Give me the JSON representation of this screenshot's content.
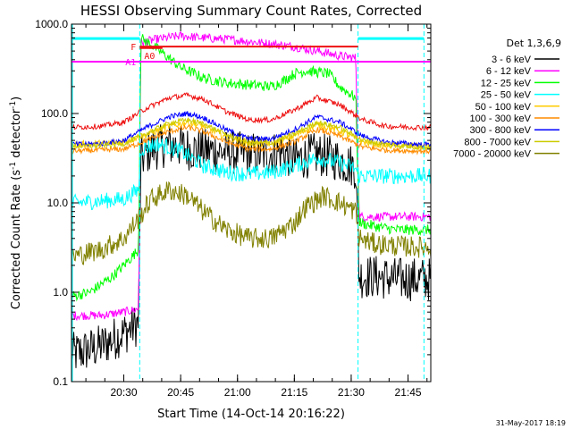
{
  "chart_data": {
    "type": "line",
    "title": "HESSI Observing Summary Count Rates, Corrected",
    "xlabel": "Start Time (14-Oct-14 20:16:22)",
    "ylabel_main": "Corrected Count Rate (s",
    "ylabel_sup1": "-1",
    "ylabel_mid": " detector",
    "ylabel_sup2": "-1",
    "ylabel_end": ")",
    "xlim": [
      20.27,
      21.85
    ],
    "ylim": [
      0.1,
      1000.0
    ],
    "yscale": "log",
    "grid": false,
    "xticks": [
      {
        "v": 20.5,
        "label": "20:30"
      },
      {
        "v": 20.75,
        "label": "20:45"
      },
      {
        "v": 21.0,
        "label": "21:00"
      },
      {
        "v": 21.25,
        "label": "21:15"
      },
      {
        "v": 21.5,
        "label": "21:30"
      },
      {
        "v": 21.75,
        "label": "21:45"
      }
    ],
    "yticks": [
      {
        "v": 0.1,
        "label": "0.1"
      },
      {
        "v": 1.0,
        "label": "1.0"
      },
      {
        "v": 10.0,
        "label": "10.0"
      },
      {
        "v": 100.0,
        "label": "100.0"
      },
      {
        "v": 1000.0,
        "label": "1000.0"
      }
    ],
    "legend": {
      "position": "right",
      "title": "Det 1,3,6,9",
      "entries": [
        {
          "label": "3 - 6 keV",
          "color": "#000000"
        },
        {
          "label": "6 - 12 keV",
          "color": "#ff00ff"
        },
        {
          "label": "12 - 25 keV",
          "color": "#00ff00"
        },
        {
          "label": "25 - 50 keV",
          "color": "#00ffff"
        },
        {
          "label": "50 - 100 keV",
          "color": "#ffcc00"
        },
        {
          "label": "100 - 300 keV",
          "color": "#ff8c00"
        },
        {
          "label": "300 - 800 keV",
          "color": "#0000ff"
        },
        {
          "label": "800 - 7000 keV",
          "color": "#cccc00"
        },
        {
          "label": "7000 - 20000 keV",
          "color": "#808000"
        }
      ]
    },
    "vlines": [
      20.57,
      21.53,
      21.82
    ],
    "attenuator_bars": [
      {
        "label": "F",
        "color": "#ee1111",
        "x": [
          20.57,
          21.53
        ],
        "y": 560
      },
      {
        "label": "A0",
        "color": "#ee1111",
        "x": [
          20.57,
          20.67
        ],
        "y": 540
      },
      {
        "label": "A1",
        "color": "#ff00ff",
        "x": [
          20.27,
          21.85
        ],
        "y": 380
      }
    ],
    "orbit_segments": [
      {
        "color": "#00ffff",
        "x": [
          20.27,
          20.57
        ],
        "y": 690
      },
      {
        "color": "#00ffff",
        "x": [
          21.53,
          21.82
        ],
        "y": 690
      }
    ],
    "series": [
      {
        "name": "3 - 6 keV",
        "color": "#000000",
        "noise": 0.25,
        "x": [
          20.27,
          20.4,
          20.5,
          20.565,
          20.575,
          20.62,
          20.7,
          20.8,
          20.9,
          21.0,
          21.1,
          21.15,
          21.2,
          21.25,
          21.3,
          21.35,
          21.4,
          21.45,
          21.52,
          21.535,
          21.6,
          21.7,
          21.8
        ],
        "y": [
          0.2,
          0.25,
          0.35,
          0.45,
          30,
          40,
          45,
          40,
          38,
          36,
          35,
          36,
          38,
          30,
          33,
          35,
          33,
          30,
          25,
          1.5,
          1.5,
          1.4,
          1.4
        ]
      },
      {
        "name": "6 - 12 keV",
        "color": "#ff00ff",
        "noise": 0.05,
        "x": [
          20.27,
          20.4,
          20.5,
          20.565,
          20.575,
          20.65,
          20.75,
          20.85,
          20.95,
          21.05,
          21.15,
          21.25,
          21.35,
          21.45,
          21.52,
          21.535,
          21.6,
          21.7,
          21.8
        ],
        "y": [
          0.55,
          0.55,
          0.6,
          0.65,
          620,
          680,
          740,
          700,
          680,
          640,
          600,
          560,
          500,
          440,
          420,
          7,
          7,
          7,
          7
        ]
      },
      {
        "name": "12 - 25 keV",
        "color": "#00ff00",
        "noise": 0.06,
        "x": [
          20.27,
          20.35,
          20.45,
          20.5,
          20.565,
          20.575,
          20.65,
          20.75,
          20.85,
          20.95,
          21.05,
          21.15,
          21.2,
          21.25,
          21.3,
          21.4,
          21.45,
          21.52,
          21.535,
          21.6,
          21.7,
          21.8
        ],
        "y": [
          0.9,
          1.0,
          1.5,
          2.0,
          3.0,
          700,
          520,
          330,
          250,
          220,
          210,
          200,
          230,
          280,
          300,
          280,
          200,
          150,
          6,
          5.5,
          5,
          5
        ]
      },
      {
        "name": "25 - 50 keV",
        "color": "#00ffff",
        "noise": 0.09,
        "x": [
          20.27,
          20.4,
          20.5,
          20.565,
          20.575,
          20.65,
          20.75,
          20.85,
          20.95,
          21.05,
          21.15,
          21.25,
          21.35,
          21.45,
          21.52,
          21.535,
          21.6,
          21.7,
          21.8
        ],
        "y": [
          10,
          10.5,
          11,
          14,
          40,
          46,
          38,
          26,
          22,
          21,
          22,
          26,
          32,
          28,
          24,
          20,
          20,
          20,
          20
        ]
      },
      {
        "name": "50 - 100 keV",
        "color": "#ffcc00",
        "noise": 0.04,
        "x": [
          20.27,
          20.4,
          20.5,
          20.6,
          20.7,
          20.78,
          20.85,
          20.95,
          21.05,
          21.15,
          21.25,
          21.35,
          21.45,
          21.55,
          21.65,
          21.8
        ],
        "y": [
          45,
          46,
          48,
          58,
          72,
          80,
          72,
          55,
          46,
          46,
          56,
          76,
          64,
          48,
          44,
          43
        ]
      },
      {
        "name": "100 - 300 keV",
        "color": "#ff8c00",
        "noise": 0.03,
        "x": [
          20.27,
          20.4,
          20.5,
          20.6,
          20.7,
          20.78,
          20.85,
          20.95,
          21.05,
          21.15,
          21.25,
          21.35,
          21.45,
          21.55,
          21.65,
          21.8
        ],
        "y": [
          38,
          39,
          40,
          50,
          63,
          70,
          63,
          48,
          40,
          40,
          48,
          66,
          56,
          42,
          39,
          38
        ]
      },
      {
        "name": "300 - 800 keV",
        "color": "#0000ff",
        "noise": 0.03,
        "x": [
          20.27,
          20.4,
          20.5,
          20.6,
          20.7,
          20.78,
          20.85,
          20.95,
          21.05,
          21.15,
          21.25,
          21.35,
          21.45,
          21.55,
          21.65,
          21.8
        ],
        "y": [
          45,
          46,
          50,
          70,
          92,
          100,
          90,
          66,
          52,
          52,
          66,
          92,
          80,
          56,
          48,
          45
        ]
      },
      {
        "name": "800 - 7000 keV",
        "color": "#cccc00",
        "noise": 0.03,
        "x": [
          20.27,
          20.4,
          20.5,
          20.6,
          20.7,
          20.78,
          20.85,
          20.95,
          21.05,
          21.15,
          21.25,
          21.35,
          21.45,
          21.55,
          21.65,
          21.8
        ],
        "y": [
          43,
          44,
          46,
          60,
          78,
          85,
          77,
          58,
          47,
          47,
          59,
          80,
          70,
          50,
          45,
          42
        ]
      },
      {
        "name": "",
        "color": "#ee1111",
        "noise": 0.03,
        "x": [
          20.27,
          20.4,
          20.5,
          20.6,
          20.7,
          20.78,
          20.85,
          20.95,
          21.05,
          21.15,
          21.25,
          21.35,
          21.45,
          21.55,
          21.65,
          21.8
        ],
        "y": [
          70,
          72,
          80,
          115,
          150,
          160,
          145,
          105,
          85,
          85,
          110,
          150,
          125,
          85,
          72,
          70
        ]
      },
      {
        "name": "7000 - 20000 keV",
        "color": "#808000",
        "noise": 0.12,
        "x": [
          20.27,
          20.4,
          20.5,
          20.57,
          20.62,
          20.7,
          20.78,
          20.85,
          20.95,
          21.05,
          21.15,
          21.25,
          21.3,
          21.38,
          21.45,
          21.52,
          21.535,
          21.6,
          21.7,
          21.8
        ],
        "y": [
          2.5,
          3.0,
          4.0,
          7.0,
          11,
          14,
          12,
          8,
          5,
          4,
          4,
          6,
          9,
          12,
          10,
          8,
          4,
          3.5,
          3.3,
          3.2
        ]
      }
    ]
  },
  "footer": {
    "date": "31-May-2017 18:19"
  }
}
